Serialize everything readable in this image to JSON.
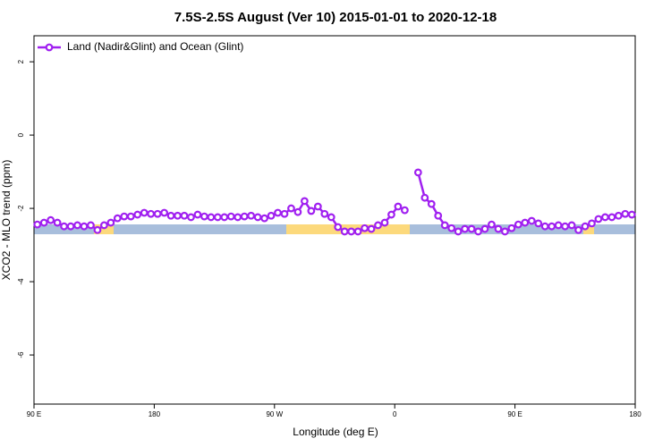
{
  "chart_data": {
    "type": "line",
    "title": "7.5S-2.5S August (Ver 10)   2015-01-01 to 2020-12-18",
    "x_label": "Longitude (deg E)",
    "y_label": "XCO2 - MLO trend (ppm)",
    "x": [
      92.5,
      97.5,
      102.5,
      107.5,
      112.5,
      117.5,
      122.5,
      127.5,
      132.5,
      137.5,
      142.5,
      147.5,
      152.5,
      157.5,
      162.5,
      167.5,
      172.5,
      177.5,
      182.5,
      187.5,
      192.5,
      197.5,
      202.5,
      207.5,
      212.5,
      217.5,
      222.5,
      227.5,
      232.5,
      237.5,
      242.5,
      247.5,
      252.5,
      257.5,
      262.5,
      267.5,
      272.5,
      277.5,
      282.5,
      287.5,
      292.5,
      297.5,
      302.5,
      307.5,
      312.5,
      317.5,
      322.5,
      327.5,
      332.5,
      337.5,
      342.5,
      347.5,
      352.5,
      357.5,
      362.5,
      367.5,
      372.5,
      377.5,
      382.5,
      387.5,
      392.5,
      397.5,
      402.5,
      407.5,
      412.5,
      417.5,
      422.5,
      427.5,
      432.5,
      437.5,
      442.5,
      447.5,
      452.5,
      457.5,
      462.5,
      467.5,
      472.5,
      477.5,
      482.5,
      487.5,
      492.5,
      497.5,
      502.5,
      507.5,
      512.5,
      517.5,
      522.5,
      527.5,
      532.5,
      537.5
    ],
    "series": [
      {
        "name": "Land (Nadir&Glint) and Ocean (Glint)",
        "color": "#a020f0",
        "values": [
          -2.44,
          -2.39,
          -2.32,
          -2.39,
          -2.49,
          -2.49,
          -2.46,
          -2.49,
          -2.46,
          -2.59,
          -2.46,
          -2.39,
          -2.27,
          -2.22,
          -2.22,
          -2.17,
          -2.12,
          -2.15,
          -2.15,
          -2.12,
          -2.2,
          -2.2,
          -2.2,
          -2.24,
          -2.17,
          -2.22,
          -2.24,
          -2.24,
          -2.24,
          -2.22,
          -2.24,
          -2.22,
          -2.2,
          -2.24,
          -2.27,
          -2.2,
          -2.12,
          -2.15,
          -2.0,
          -2.1,
          -1.8,
          -2.07,
          -1.95,
          -2.15,
          -2.24,
          -2.51,
          -2.63,
          -2.63,
          -2.63,
          -2.54,
          -2.56,
          -2.46,
          -2.39,
          -2.17,
          -1.95,
          -2.05,
          null,
          -1.02,
          -1.71,
          -1.88,
          -2.2,
          -2.46,
          -2.54,
          -2.63,
          -2.56,
          -2.56,
          -2.63,
          -2.56,
          -2.44,
          -2.56,
          -2.63,
          -2.54,
          -2.44,
          -2.39,
          -2.34,
          -2.41,
          -2.49,
          -2.49,
          -2.46,
          -2.49,
          -2.46,
          -2.59,
          -2.49,
          -2.41,
          -2.29,
          -2.24,
          -2.24,
          -2.2,
          -2.15,
          -2.17
        ]
      }
    ],
    "xlim": [
      90,
      540
    ],
    "xticks": [
      {
        "value": 90,
        "label": "90 E"
      },
      {
        "value": 180,
        "label": "180"
      },
      {
        "value": 270,
        "label": "90 W"
      },
      {
        "value": 360,
        "label": "0"
      },
      {
        "value": 450,
        "label": "90 E"
      },
      {
        "value": 540,
        "label": "180"
      }
    ],
    "ylim": [
      -7.34,
      2.71
    ],
    "yticks": [
      -6,
      -4,
      -2,
      0,
      2
    ],
    "legend": "top-left"
  }
}
